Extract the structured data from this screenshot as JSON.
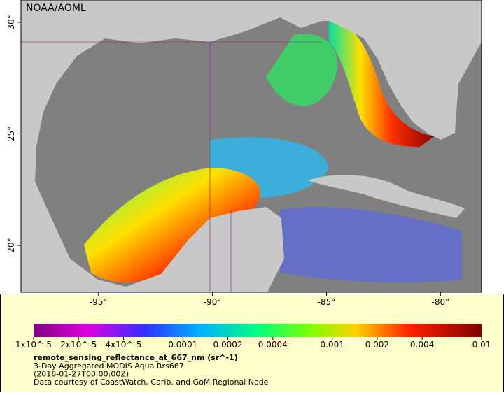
{
  "title": "NOAA/AOML",
  "map": {
    "xlim": [
      -98.4,
      -78.2
    ],
    "ylim": [
      17.9,
      31
    ],
    "xticks": [
      {
        "value": -95,
        "label": "-95°"
      },
      {
        "value": -90,
        "label": "-90°"
      },
      {
        "value": -85,
        "label": "-85°"
      },
      {
        "value": -80,
        "label": "-80°"
      }
    ],
    "yticks": [
      {
        "value": 20,
        "label": "20°"
      },
      {
        "value": 25,
        "label": "25°"
      },
      {
        "value": 30,
        "label": "30°"
      }
    ]
  },
  "colorbar": {
    "title": "remote_sensing_reflectance_at_667_nm (sr^-1)",
    "scale": "log",
    "lim": [
      1e-05,
      0.01
    ],
    "ticks": [
      {
        "value": 1e-05,
        "label": "1x10^-5"
      },
      {
        "value": 2e-05,
        "label": "2x10^-5"
      },
      {
        "value": 4e-05,
        "label": "4x10^-5"
      },
      0.0001,
      0.0002,
      0.0004,
      0.001,
      0.002,
      0.004,
      0.01
    ],
    "lines": [
      "3-Day Aggregated MODIS Aqua Rrs667",
      "(2016-01-27T00:00:00Z)",
      "Data courtesy of CoastWatch, Carib. and GoM Regional Node"
    ]
  }
}
